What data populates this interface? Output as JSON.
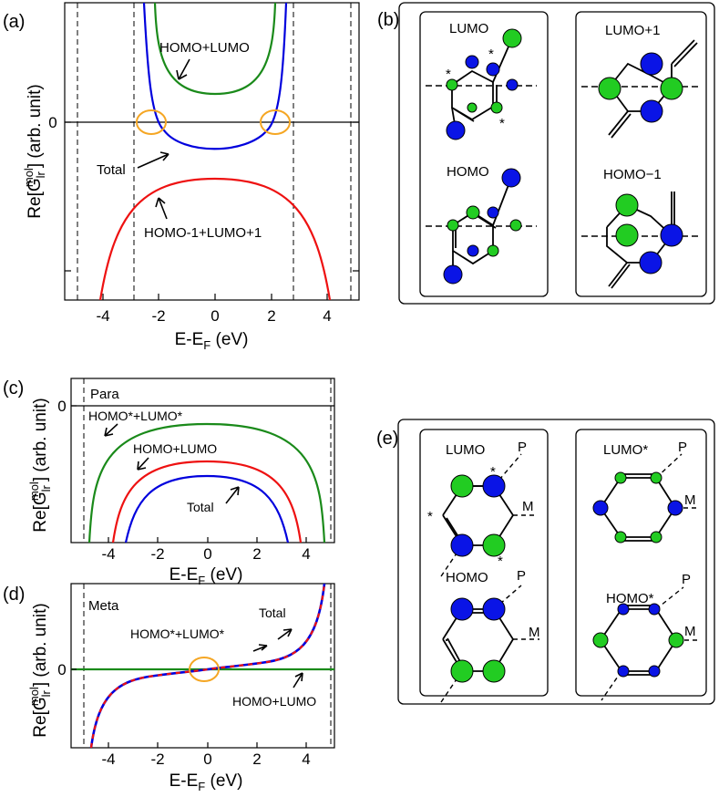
{
  "colors": {
    "green": "#1a8a1a",
    "blue": "#0000dd",
    "red": "#ee1111",
    "orange": "#f5a623",
    "atom_green": "#22cc22",
    "atom_blue": "#0a14e6"
  },
  "panel_labels": {
    "a": "(a)",
    "b": "(b)",
    "c": "(c)",
    "d": "(d)",
    "e": "(e)"
  },
  "panel_a": {
    "ylabel_pre": "Re[G",
    "ylabel_sub": "lr",
    "ylabel_sup": "mol",
    "ylabel_post": "] (arb. unit)",
    "xlabel_pre": "E-E",
    "xlabel_sub": "F",
    "xlabel_post": " (eV)",
    "zero_label": "0",
    "x_ticks": [
      "-4",
      "-2",
      "0",
      "2",
      "4"
    ],
    "annotations": {
      "homo_lumo": "HOMO+LUMO",
      "total": "Total",
      "homo1_lumo1": "HOMO-1+LUMO+1"
    }
  },
  "panel_b": {
    "lumo": "LUMO",
    "lumo1": "LUMO+1",
    "homo": "HOMO",
    "homo1": "HOMO−1",
    "star": "*"
  },
  "panel_c": {
    "ylabel_pre": "Re[G",
    "ylabel_sub": "lr",
    "ylabel_sup": "mol",
    "ylabel_post": "] (arb. unit)",
    "xlabel_pre": "E-E",
    "xlabel_sub": "F",
    "xlabel_post": " (eV)",
    "zero_label": "0",
    "x_ticks": [
      "-4",
      "-2",
      "0",
      "2",
      "4"
    ],
    "tag": "Para",
    "annotations": {
      "homo_lumo_star": "HOMO*+LUMO*",
      "homo_lumo": "HOMO+LUMO",
      "total": "Total"
    }
  },
  "panel_d": {
    "ylabel_pre": "Re[G",
    "ylabel_sub": "lr",
    "ylabel_sup": "mol",
    "ylabel_post": "] (arb. unit)",
    "xlabel_pre": "E-E",
    "xlabel_sub": "F",
    "xlabel_post": " (eV)",
    "zero_label": "0",
    "x_ticks": [
      "-4",
      "-2",
      "0",
      "2",
      "4"
    ],
    "tag": "Meta",
    "annotations": {
      "total": "Total",
      "homo_lumo_star": "HOMO*+LUMO*",
      "homo_lumo": "HOMO+LUMO"
    }
  },
  "panel_e": {
    "lumo": "LUMO",
    "lumo_star": "LUMO*",
    "homo": "HOMO",
    "homo_star": "HOMO*",
    "p": "P",
    "m": "M",
    "star": "*"
  }
}
